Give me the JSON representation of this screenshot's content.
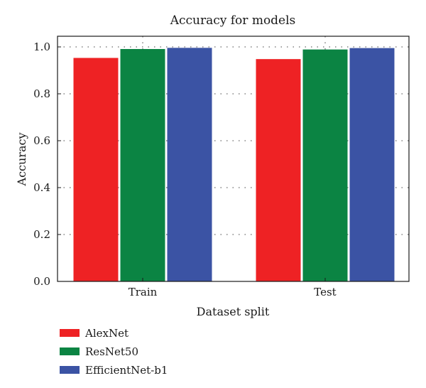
{
  "chart_data": {
    "type": "bar",
    "title": "Accuracy for models",
    "xlabel": "Dataset split",
    "ylabel": "Accuracy",
    "categories": [
      "Train",
      "Test"
    ],
    "ylim": [
      0.0,
      1.0
    ],
    "yticks": [
      "0.0",
      "0.2",
      "0.4",
      "0.6",
      "0.8",
      "1.0"
    ],
    "grid": "dotted",
    "legend_position": "bottom-left",
    "series": [
      {
        "name": "AlexNet",
        "color": "#ee2224",
        "values": [
          0.953,
          0.948
        ]
      },
      {
        "name": "ResNet50",
        "color": "#0b8443",
        "values": [
          0.991,
          0.989
        ]
      },
      {
        "name": "EfficientNet-b1",
        "color": "#3b53a4",
        "values": [
          0.996,
          0.995
        ]
      }
    ]
  }
}
